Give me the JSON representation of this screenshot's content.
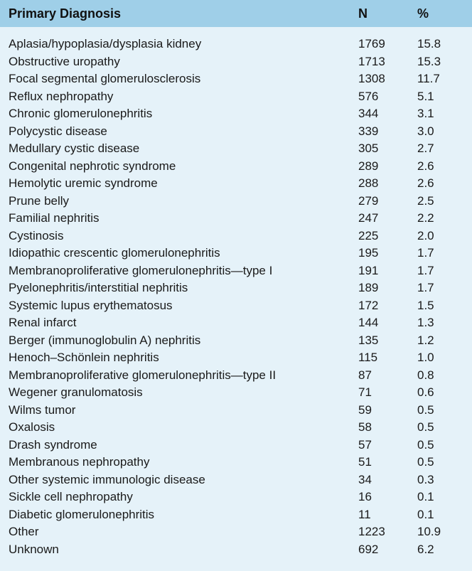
{
  "table": {
    "headers": {
      "diagnosis": "Primary Diagnosis",
      "n": "N",
      "percent": "%"
    },
    "rows": [
      {
        "diagnosis": "Aplasia/hypoplasia/dysplasia kidney",
        "n": "1769",
        "percent": "15.8"
      },
      {
        "diagnosis": "Obstructive uropathy",
        "n": "1713",
        "percent": "15.3"
      },
      {
        "diagnosis": "Focal segmental glomerulosclerosis",
        "n": "1308",
        "percent": "11.7"
      },
      {
        "diagnosis": "Reflux nephropathy",
        "n": "576",
        "percent": "5.1"
      },
      {
        "diagnosis": "Chronic glomerulonephritis",
        "n": "344",
        "percent": "3.1"
      },
      {
        "diagnosis": "Polycystic disease",
        "n": "339",
        "percent": "3.0"
      },
      {
        "diagnosis": "Medullary cystic disease",
        "n": "305",
        "percent": "2.7"
      },
      {
        "diagnosis": "Congenital nephrotic syndrome",
        "n": "289",
        "percent": "2.6"
      },
      {
        "diagnosis": "Hemolytic uremic syndrome",
        "n": "288",
        "percent": "2.6"
      },
      {
        "diagnosis": "Prune belly",
        "n": "279",
        "percent": "2.5"
      },
      {
        "diagnosis": "Familial nephritis",
        "n": "247",
        "percent": "2.2"
      },
      {
        "diagnosis": "Cystinosis",
        "n": "225",
        "percent": "2.0"
      },
      {
        "diagnosis": "Idiopathic crescentic glomerulonephritis",
        "n": "195",
        "percent": "1.7"
      },
      {
        "diagnosis": "Membranoproliferative glomerulonephritis—type I",
        "n": "191",
        "percent": "1.7"
      },
      {
        "diagnosis": "Pyelonephritis/interstitial nephritis",
        "n": "189",
        "percent": "1.7"
      },
      {
        "diagnosis": "Systemic lupus erythematosus",
        "n": "172",
        "percent": "1.5"
      },
      {
        "diagnosis": "Renal infarct",
        "n": "144",
        "percent": "1.3"
      },
      {
        "diagnosis": "Berger (immunoglobulin A) nephritis",
        "n": "135",
        "percent": "1.2"
      },
      {
        "diagnosis": "Henoch–Schönlein nephritis",
        "n": "115",
        "percent": "1.0"
      },
      {
        "diagnosis": "Membranoproliferative glomerulonephritis—type II",
        "n": "87",
        "percent": "0.8"
      },
      {
        "diagnosis": "Wegener granulomatosis",
        "n": "71",
        "percent": "0.6"
      },
      {
        "diagnosis": "Wilms tumor",
        "n": "59",
        "percent": "0.5"
      },
      {
        "diagnosis": "Oxalosis",
        "n": "58",
        "percent": "0.5"
      },
      {
        "diagnosis": "Drash syndrome",
        "n": "57",
        "percent": "0.5"
      },
      {
        "diagnosis": "Membranous nephropathy",
        "n": "51",
        "percent": "0.5"
      },
      {
        "diagnosis": "Other systemic immunologic disease",
        "n": "34",
        "percent": "0.3"
      },
      {
        "diagnosis": "Sickle cell nephropathy",
        "n": "16",
        "percent": "0.1"
      },
      {
        "diagnosis": "Diabetic glomerulonephritis",
        "n": "11",
        "percent": "0.1"
      },
      {
        "diagnosis": "Other",
        "n": "1223",
        "percent": "10.9"
      },
      {
        "diagnosis": "Unknown",
        "n": "692",
        "percent": "6.2"
      }
    ]
  },
  "colors": {
    "header_background": "#9fcfe8",
    "body_background": "#e5f2f9",
    "text": "#1a1a1a"
  }
}
